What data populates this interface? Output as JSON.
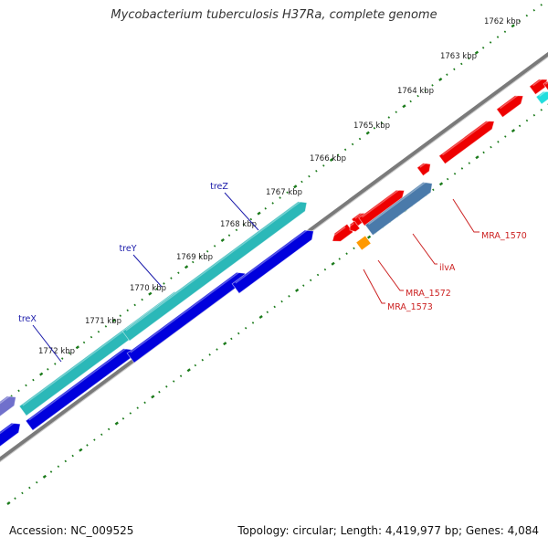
{
  "title": "Mycobacterium tuberculosis H37Ra, complete genome",
  "ticks": [
    {
      "label": "1762 kbp"
    },
    {
      "label": "1763 kbp"
    },
    {
      "label": "1764 kbp"
    },
    {
      "label": "1765 kbp"
    },
    {
      "label": "1766 kbp"
    },
    {
      "label": "1767 kbp"
    },
    {
      "label": "1768 kbp"
    },
    {
      "label": "1769 kbp"
    },
    {
      "label": "1770 kbp"
    },
    {
      "label": "1771 kbp"
    },
    {
      "label": "1772 kbp"
    }
  ],
  "gene_labels_outer": [
    {
      "label": "treZ",
      "color": "#1a1aaa"
    },
    {
      "label": "treY",
      "color": "#1a1aaa"
    },
    {
      "label": "treX",
      "color": "#1a1aaa"
    }
  ],
  "gene_labels_inner": [
    {
      "label": "MRA_1570",
      "color": "#cc2222"
    },
    {
      "label": "ilvA",
      "color": "#cc2222"
    },
    {
      "label": "MRA_1572",
      "color": "#cc2222"
    },
    {
      "label": "MRA_1573",
      "color": "#cc2222"
    }
  ],
  "colors": {
    "backbone": "#7a7a7a",
    "tick": "#1a7a1a",
    "red_gene": "#ee0000",
    "cyan_gene": "#2bb8b8",
    "blue_gene": "#0000dd",
    "steelblue_gene": "#4a7aaa",
    "orange_gene": "#ff9900",
    "purple_gene": "#7070cc"
  },
  "footer": {
    "accession": "Accession: NC_009525",
    "stats": "Topology: circular; Length: 4,419,977 bp; Genes: 4,084"
  }
}
